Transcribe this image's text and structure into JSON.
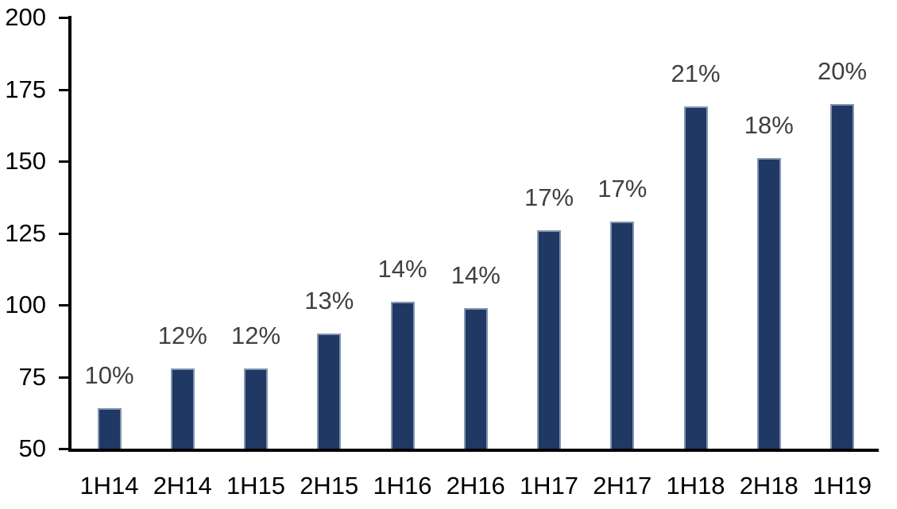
{
  "chart_data": {
    "type": "bar",
    "categories": [
      "1H14",
      "2H14",
      "1H15",
      "2H15",
      "1H16",
      "2H16",
      "1H17",
      "2H17",
      "1H18",
      "2H18",
      "1H19"
    ],
    "values": [
      64,
      78,
      78,
      90,
      101,
      99,
      126,
      129,
      169,
      151,
      170
    ],
    "bar_labels": [
      "10%",
      "12%",
      "12%",
      "13%",
      "14%",
      "14%",
      "17%",
      "17%",
      "21%",
      "18%",
      "20%"
    ],
    "title": "",
    "xlabel": "",
    "ylabel": "",
    "ylim": [
      50,
      200
    ],
    "yticks": [
      50,
      75,
      100,
      125,
      150,
      175,
      200
    ],
    "grid": false,
    "legend": false,
    "colors": {
      "bar_fill": "#1F3864",
      "bar_border": "#8496B0",
      "axis_line": "#000000",
      "axis_text": "#000000",
      "data_label_text": "#404040",
      "background": "#FFFFFF"
    }
  }
}
